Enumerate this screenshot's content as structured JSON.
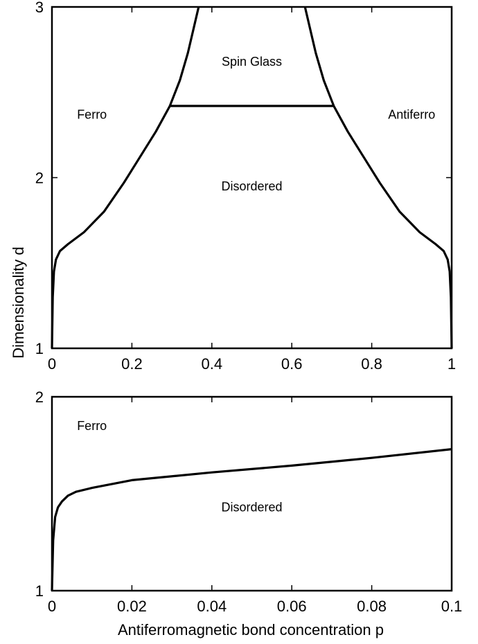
{
  "chart_data": [
    {
      "type": "line",
      "title": "",
      "xlabel": "",
      "ylabel": "Dimensionality d",
      "xlim": [
        0,
        1
      ],
      "ylim": [
        1,
        3
      ],
      "xticks": [
        "0",
        "0.2",
        "0.4",
        "0.6",
        "0.8",
        "1"
      ],
      "xtick_values": [
        0,
        0.2,
        0.4,
        0.6,
        0.8,
        1
      ],
      "yticks": [
        "1",
        "2",
        "3"
      ],
      "ytick_values": [
        1,
        2,
        3
      ],
      "grid": false,
      "region_labels": [
        {
          "text": "Ferro",
          "x": 0.1,
          "y": 2.37
        },
        {
          "text": "Spin Glass",
          "x": 0.5,
          "y": 2.68
        },
        {
          "text": "Antiferro",
          "x": 0.9,
          "y": 2.37
        },
        {
          "text": "Disordered",
          "x": 0.5,
          "y": 1.95
        }
      ],
      "series": [
        {
          "x": [
            0,
            0.002,
            0.005,
            0.01,
            0.02,
            0.04,
            0.08,
            0.13,
            0.18,
            0.22,
            0.26,
            0.295
          ],
          "y": [
            1.0,
            1.3,
            1.45,
            1.52,
            1.57,
            1.61,
            1.68,
            1.8,
            1.97,
            2.12,
            2.27,
            2.42
          ]
        },
        {
          "x": [
            0.295,
            0.32,
            0.34,
            0.355,
            0.367
          ],
          "y": [
            2.42,
            2.57,
            2.73,
            2.88,
            3.0
          ]
        },
        {
          "x": [
            0.295,
            0.705
          ],
          "y": [
            2.42,
            2.42
          ]
        },
        {
          "x": [
            0.705,
            0.68,
            0.66,
            0.645,
            0.633
          ],
          "y": [
            2.42,
            2.57,
            2.73,
            2.88,
            3.0
          ]
        },
        {
          "x": [
            1,
            0.998,
            0.995,
            0.99,
            0.98,
            0.96,
            0.92,
            0.87,
            0.82,
            0.78,
            0.74,
            0.705
          ],
          "y": [
            1.0,
            1.3,
            1.45,
            1.52,
            1.57,
            1.61,
            1.68,
            1.8,
            1.97,
            2.12,
            2.27,
            2.42
          ]
        }
      ]
    },
    {
      "type": "line",
      "title": "",
      "xlabel": "Antiferromagnetic bond concentration p",
      "ylabel": "",
      "xlim": [
        0,
        0.1
      ],
      "ylim": [
        1,
        2
      ],
      "xticks": [
        "0",
        "0.02",
        "0.04",
        "0.06",
        "0.08",
        "0.1"
      ],
      "xtick_values": [
        0,
        0.02,
        0.04,
        0.06,
        0.08,
        0.1
      ],
      "yticks": [
        "1",
        "2"
      ],
      "ytick_values": [
        1,
        2
      ],
      "grid": false,
      "region_labels": [
        {
          "text": "Ferro",
          "x": 0.01,
          "y": 1.85
        },
        {
          "text": "Disordered",
          "x": 0.05,
          "y": 1.43
        }
      ],
      "series": [
        {
          "x": [
            0,
            0.0003,
            0.0008,
            0.0015,
            0.0025,
            0.004,
            0.006,
            0.01,
            0.02,
            0.04,
            0.06,
            0.08,
            0.1
          ],
          "y": [
            1.0,
            1.26,
            1.38,
            1.43,
            1.46,
            1.49,
            1.51,
            1.53,
            1.57,
            1.61,
            1.645,
            1.685,
            1.73
          ]
        }
      ]
    }
  ]
}
